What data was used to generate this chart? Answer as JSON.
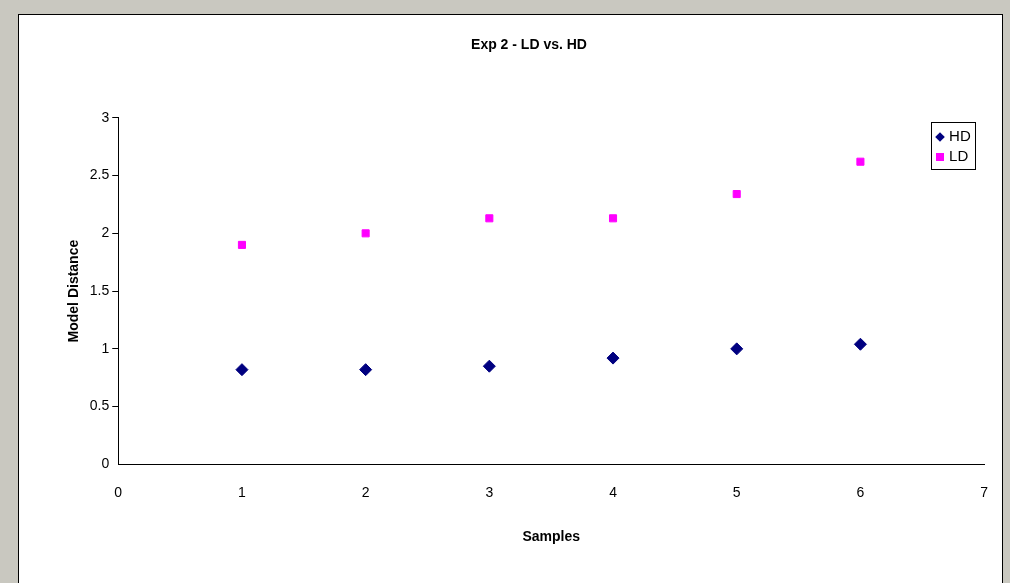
{
  "chart_data": {
    "type": "scatter",
    "title": "Exp 2 - LD vs. HD",
    "xlabel": "Samples",
    "ylabel": "Model Distance",
    "x": [
      1,
      2,
      3,
      4,
      5,
      6
    ],
    "series": [
      {
        "name": "HD",
        "color": "#000080",
        "marker": "diamond",
        "values": [
          0.82,
          0.82,
          0.85,
          0.92,
          1.0,
          1.04
        ]
      },
      {
        "name": "LD",
        "color": "#ff00ff",
        "marker": "square",
        "values": [
          1.9,
          2.0,
          2.13,
          2.13,
          2.34,
          2.62
        ]
      }
    ],
    "xlim": [
      0,
      7
    ],
    "xticks": [
      0,
      1,
      2,
      3,
      4,
      5,
      6,
      7
    ],
    "ylim": [
      0,
      3
    ],
    "yticks": [
      0,
      0.5,
      1,
      1.5,
      2,
      2.5,
      3
    ],
    "grid": false,
    "legend": "top right"
  }
}
